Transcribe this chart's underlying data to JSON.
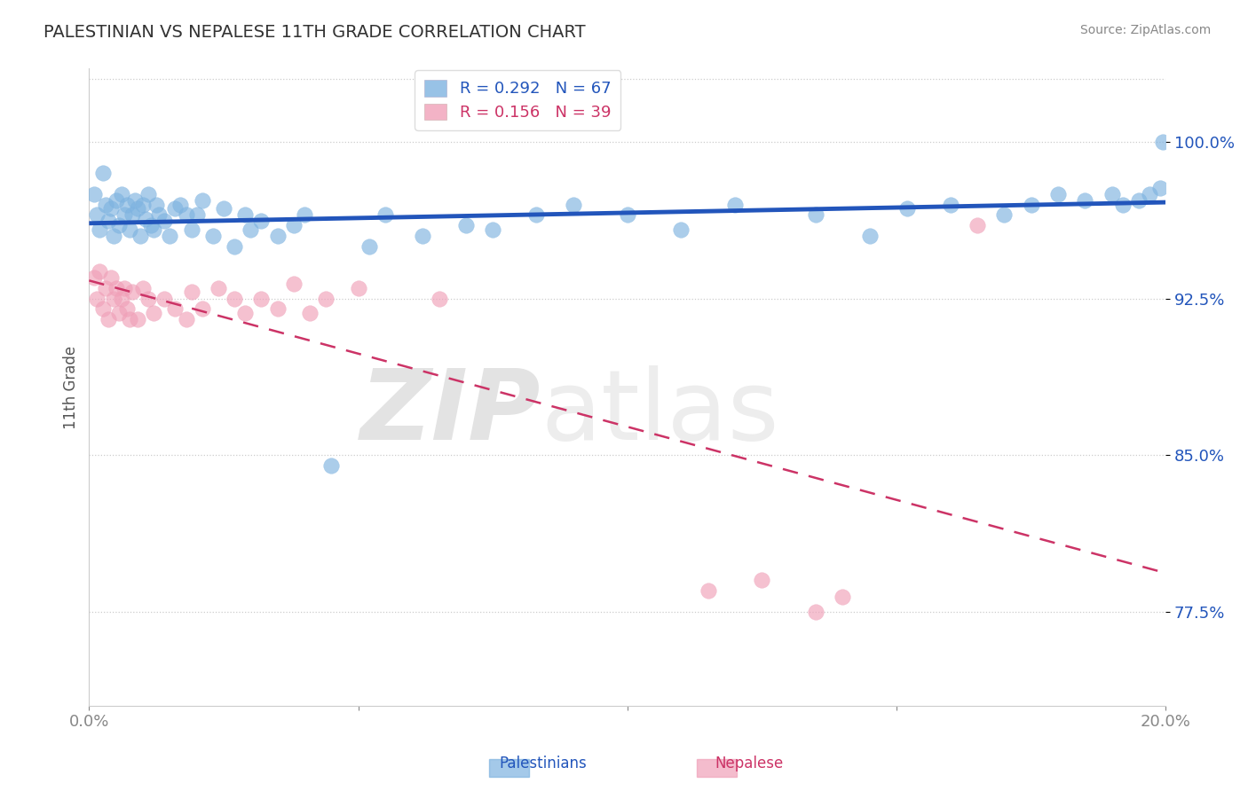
{
  "title": "PALESTINIAN VS NEPALESE 11TH GRADE CORRELATION CHART",
  "source": "Source: ZipAtlas.com",
  "ylabel": "11th Grade",
  "xlim": [
    0.0,
    20.0
  ],
  "ylim": [
    73.0,
    103.5
  ],
  "yticks": [
    77.5,
    85.0,
    92.5,
    100.0
  ],
  "ytick_labels": [
    "77.5%",
    "85.0%",
    "92.5%",
    "100.0%"
  ],
  "r_palestinian": 0.292,
  "n_palestinian": 67,
  "r_nepalese": 0.156,
  "n_nepalese": 39,
  "color_palestinian": "#7EB3E0",
  "color_nepalese": "#F0A0B8",
  "trend_color_palestinian": "#2255BB",
  "trend_color_nepalese": "#CC3366",
  "background_color": "#FFFFFF",
  "palestinian_x": [
    0.1,
    0.15,
    0.2,
    0.25,
    0.3,
    0.35,
    0.4,
    0.45,
    0.5,
    0.55,
    0.6,
    0.65,
    0.7,
    0.75,
    0.8,
    0.85,
    0.9,
    0.95,
    1.0,
    1.05,
    1.1,
    1.15,
    1.2,
    1.25,
    1.3,
    1.4,
    1.5,
    1.6,
    1.7,
    1.8,
    1.9,
    2.0,
    2.1,
    2.3,
    2.5,
    2.7,
    2.9,
    3.0,
    3.2,
    3.5,
    3.8,
    4.0,
    4.5,
    5.2,
    5.5,
    6.2,
    7.0,
    7.5,
    8.3,
    9.0,
    10.0,
    11.0,
    12.0,
    13.5,
    14.5,
    15.2,
    16.0,
    17.0,
    17.5,
    18.0,
    18.5,
    19.0,
    19.2,
    19.5,
    19.7,
    19.9,
    19.95
  ],
  "palestinian_y": [
    97.5,
    96.5,
    95.8,
    98.5,
    97.0,
    96.2,
    96.8,
    95.5,
    97.2,
    96.0,
    97.5,
    96.5,
    97.0,
    95.8,
    96.5,
    97.2,
    96.8,
    95.5,
    97.0,
    96.3,
    97.5,
    96.0,
    95.8,
    97.0,
    96.5,
    96.2,
    95.5,
    96.8,
    97.0,
    96.5,
    95.8,
    96.5,
    97.2,
    95.5,
    96.8,
    95.0,
    96.5,
    95.8,
    96.2,
    95.5,
    96.0,
    96.5,
    84.5,
    95.0,
    96.5,
    95.5,
    96.0,
    95.8,
    96.5,
    97.0,
    96.5,
    95.8,
    97.0,
    96.5,
    95.5,
    96.8,
    97.0,
    96.5,
    97.0,
    97.5,
    97.2,
    97.5,
    97.0,
    97.2,
    97.5,
    97.8,
    100.0
  ],
  "nepalese_x": [
    0.1,
    0.15,
    0.2,
    0.25,
    0.3,
    0.35,
    0.4,
    0.45,
    0.5,
    0.55,
    0.6,
    0.65,
    0.7,
    0.75,
    0.8,
    0.9,
    1.0,
    1.1,
    1.2,
    1.4,
    1.6,
    1.8,
    1.9,
    2.1,
    2.4,
    2.7,
    2.9,
    3.2,
    3.5,
    3.8,
    4.1,
    4.4,
    5.0,
    6.5,
    11.5,
    12.5,
    13.5,
    14.0,
    16.5
  ],
  "nepalese_y": [
    93.5,
    92.5,
    93.8,
    92.0,
    93.0,
    91.5,
    93.5,
    92.5,
    93.0,
    91.8,
    92.5,
    93.0,
    92.0,
    91.5,
    92.8,
    91.5,
    93.0,
    92.5,
    91.8,
    92.5,
    92.0,
    91.5,
    92.8,
    92.0,
    93.0,
    92.5,
    91.8,
    92.5,
    92.0,
    93.2,
    91.8,
    92.5,
    93.0,
    92.5,
    78.5,
    79.0,
    77.5,
    78.2,
    96.0
  ]
}
